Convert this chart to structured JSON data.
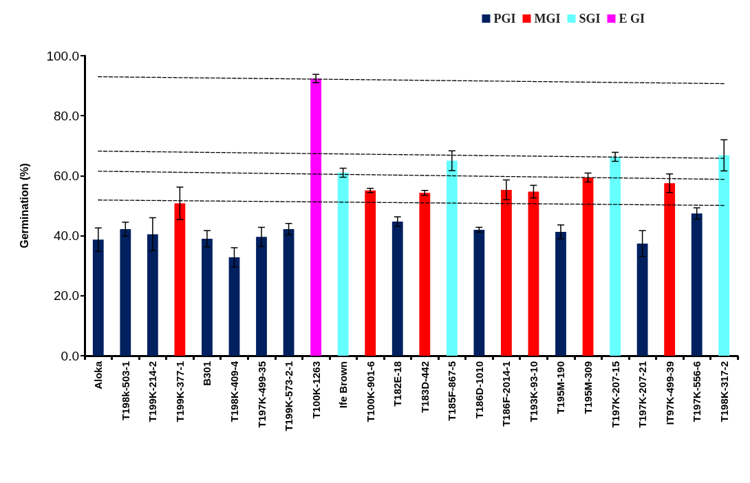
{
  "chart_data": {
    "type": "bar",
    "ylabel": "Germination (%)",
    "legend": "top right",
    "grid": false,
    "categories": [
      "Aloka",
      "T198k-503-1",
      "T199K-214-2",
      "T199K-377-1",
      "B301",
      "T198K-409-4",
      "T197K-499-35",
      "T199K-573-2-1",
      "T100K-1263",
      "Ife Brown",
      "T100K-901-6",
      "T182E-18",
      "T183D-442",
      "T185F-867-5",
      "T186D-1010",
      "T186F-2014-1",
      "T193K-93-10",
      "T195M-190",
      "T195M-309",
      "T197K-207-15",
      "T197K-207-21",
      "IT97K-499-39",
      "T197K-556-6",
      "T198K-317-2"
    ],
    "ylim": [
      0,
      100
    ],
    "yticks": [
      {
        "value": 0,
        "label": "0.0"
      },
      {
        "value": 20,
        "label": "20.0"
      },
      {
        "value": 40,
        "label": "40.0"
      },
      {
        "value": 60,
        "label": "60.0"
      },
      {
        "value": 80,
        "label": "80.0"
      },
      {
        "value": 100,
        "label": "100.0"
      }
    ],
    "series": [
      {
        "name": "PGI",
        "color": "#002060",
        "values": [
          38.7,
          42.2,
          40.5,
          null,
          39.0,
          32.8,
          39.6,
          42.2,
          null,
          null,
          null,
          44.7,
          null,
          null,
          42.0,
          null,
          null,
          41.3,
          null,
          null,
          37.4,
          null,
          47.4,
          null
        ],
        "errors": [
          3.9,
          2.3,
          5.5,
          null,
          2.7,
          3.2,
          3.2,
          1.9,
          null,
          null,
          null,
          1.6,
          null,
          null,
          0.8,
          null,
          null,
          2.3,
          null,
          null,
          4.3,
          null,
          1.9,
          null
        ]
      },
      {
        "name": "MGI",
        "color": "#ff0000",
        "values": [
          null,
          null,
          null,
          50.8,
          null,
          null,
          null,
          null,
          null,
          null,
          55.1,
          null,
          54.3,
          null,
          null,
          55.3,
          54.7,
          null,
          59.4,
          null,
          null,
          57.5,
          null,
          null
        ],
        "errors": [
          null,
          null,
          null,
          5.4,
          null,
          null,
          null,
          null,
          null,
          null,
          0.7,
          null,
          0.8,
          null,
          null,
          3.3,
          2.1,
          null,
          1.5,
          null,
          null,
          3.1,
          null,
          null
        ]
      },
      {
        "name": "SGI",
        "color": "#66ffff",
        "values": [
          null,
          null,
          null,
          null,
          null,
          null,
          null,
          null,
          null,
          61.0,
          null,
          null,
          null,
          65.0,
          null,
          null,
          null,
          null,
          null,
          66.3,
          null,
          null,
          null,
          66.8
        ],
        "errors": [
          null,
          null,
          null,
          null,
          null,
          null,
          null,
          null,
          null,
          1.5,
          null,
          null,
          null,
          3.3,
          null,
          null,
          null,
          null,
          null,
          1.5,
          null,
          null,
          null,
          5.2
        ]
      },
      {
        "name": "E GI",
        "color": "#ff00ff",
        "values": [
          null,
          null,
          null,
          null,
          null,
          null,
          null,
          null,
          92.4,
          null,
          null,
          null,
          null,
          null,
          null,
          null,
          null,
          null,
          null,
          null,
          null,
          null,
          null,
          null
        ],
        "errors": [
          null,
          null,
          null,
          null,
          null,
          null,
          null,
          null,
          1.4,
          null,
          null,
          null,
          null,
          null,
          null,
          null,
          null,
          null,
          null,
          null,
          null,
          null,
          null,
          null
        ]
      },
      {
        "type": "line",
        "color": "#000000",
        "line_style": "dashed",
        "marker": "none",
        "x": [
          "Aloka",
          "T198K-317-2"
        ],
        "values": [
          93.0,
          90.7
        ]
      },
      {
        "type": "line",
        "color": "#000000",
        "line_style": "dashed",
        "marker": "none",
        "x": [
          "Aloka",
          "T198K-317-2"
        ],
        "values": [
          68.2,
          65.8
        ]
      },
      {
        "type": "line",
        "color": "#000000",
        "line_style": "dashed",
        "marker": "none",
        "x": [
          "Aloka",
          "T198K-317-2"
        ],
        "values": [
          61.5,
          58.8
        ]
      },
      {
        "type": "line",
        "color": "#000000",
        "line_style": "dashed",
        "marker": "none",
        "x": [
          "Aloka",
          "T198K-317-2"
        ],
        "values": [
          51.9,
          50.1
        ]
      }
    ]
  }
}
